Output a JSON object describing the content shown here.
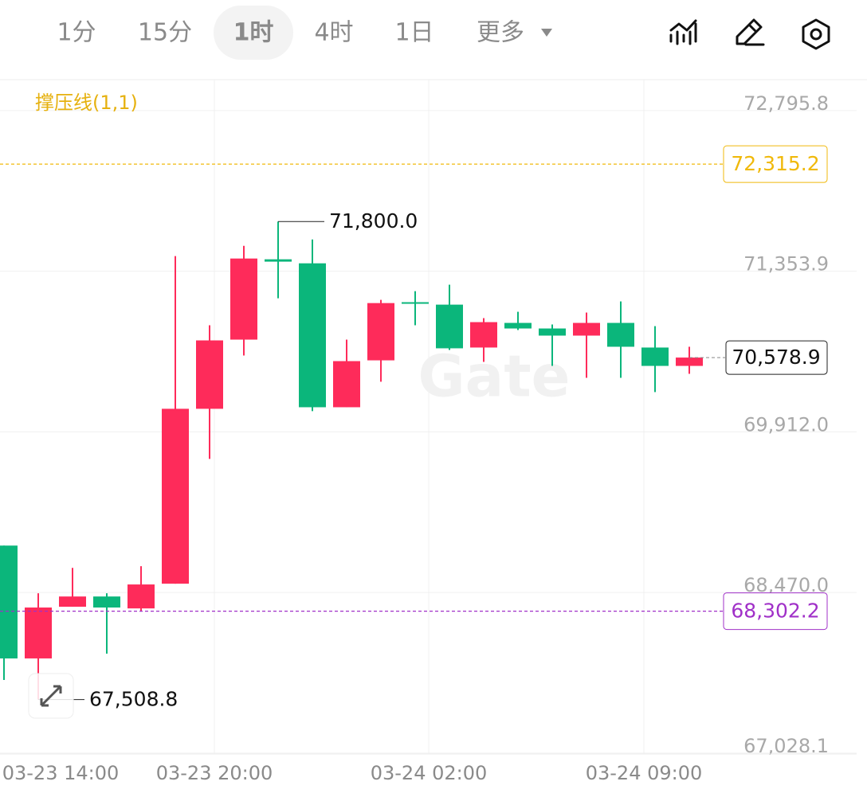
{
  "toolbar": {
    "tabs": [
      "1分",
      "15分",
      "1时",
      "4时",
      "1日",
      "更多"
    ],
    "active": 2
  },
  "chart_data": {
    "type": "candlestick",
    "indicator": "撑压线(1,1)",
    "watermark": "Gate",
    "up_color": "#fe2b5a",
    "down_color": "#0bb67b",
    "open": [
      68891,
      67878,
      68342,
      68434,
      68327,
      68549,
      70119,
      70740,
      71461,
      71425,
      70133,
      70554,
      71076,
      71054,
      70669,
      70890,
      70840,
      70776,
      70890,
      70669,
      70504
    ],
    "high": [
      68891,
      68463,
      68691,
      68463,
      68706,
      71490,
      70869,
      71582,
      71800,
      71639,
      70740,
      71097,
      71175,
      71233,
      70933,
      70990,
      70876,
      70983,
      71083,
      70861,
      70676
    ],
    "low": [
      67685,
      67508.8,
      68342,
      67921,
      68306,
      68549,
      69669,
      70597,
      71111,
      70098,
      70133,
      70362,
      70869,
      70647,
      70540,
      70826,
      70504,
      70397,
      70397,
      70269,
      70433
    ],
    "close": [
      67878,
      68335,
      68434,
      68335,
      68542,
      70119,
      70733,
      71468,
      71440,
      70133,
      70547,
      71068,
      71068,
      70662,
      70897,
      70840,
      70776,
      70890,
      70676,
      70504,
      70578.9
    ],
    "x_labels": [
      "03-23 14:00",
      "03-23 20:00",
      "03-24 02:00",
      "03-24 09:00"
    ],
    "ylim": [
      67020,
      73074
    ],
    "yticks": [
      {
        "value": 72795.8,
        "label": "72,795.8"
      },
      {
        "value": 71353.9,
        "label": "71,353.9"
      },
      {
        "value": 69912.0,
        "label": "69,912.0"
      },
      {
        "value": 68470.0,
        "label": "68,470.0"
      },
      {
        "value": 67028.1,
        "label": "67,028.1"
      }
    ],
    "resistance": {
      "value": 72315.2,
      "label": "72,315.2",
      "color": "#f0b90b"
    },
    "support": {
      "value": 68302.2,
      "label": "68,302.2",
      "color": "#a030c8"
    },
    "last_price": {
      "value": 70578.9,
      "label": "70,578.9"
    },
    "max_marker": {
      "index": 8,
      "value": 71800.0,
      "label": "71,800.0"
    },
    "min_marker": {
      "index": 1,
      "value": 67508.8,
      "label": "67,508.8"
    }
  }
}
